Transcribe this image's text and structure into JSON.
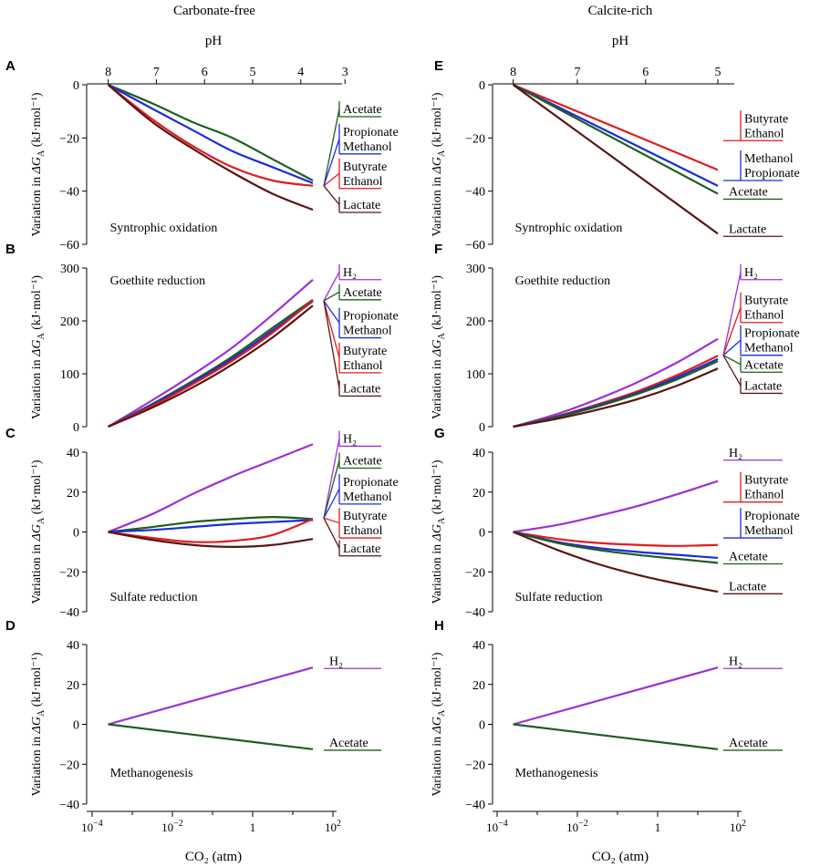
{
  "figure": {
    "columns": [
      {
        "title": "Carbonate-free",
        "top_axis_label": "pH",
        "bottom_axis_label": "CO₂ (atm)"
      },
      {
        "title": "Calcite-rich",
        "top_axis_label": "pH",
        "bottom_axis_label": "CO₂ (atm)"
      }
    ],
    "ylabel_prefix": "Variation in ",
    "ylabel_symbol": "ΔG",
    "ylabel_subscript": "A",
    "ylabel_units": " (kJ·mol⁻¹)",
    "log_ticks": [
      {
        "value": -4,
        "base": "10",
        "exp": "−4"
      },
      {
        "value": -2,
        "base": "10",
        "exp": "−2"
      },
      {
        "value": 0,
        "base": "1",
        "exp": ""
      },
      {
        "value": 2,
        "base": "10",
        "exp": "2"
      }
    ]
  },
  "colors": {
    "Acetate": "#1d5e1d",
    "Propionate": "#1b2be0",
    "Methanol": "#1b2be0",
    "Butyrate": "#e31b1b",
    "Ethanol": "#e31b1b",
    "Lactate": "#5a1414",
    "H2": "#9b30d9",
    "Cc_H2": "#9b30d9"
  },
  "chart_data": [
    {
      "panel": "A",
      "type": "line",
      "title": "Syntrophic oxidation",
      "column": "Carbonate-free",
      "xlabel": "CO₂ (atm)",
      "x_scale": "log10",
      "xlim": [
        -4,
        2
      ],
      "top_axis": {
        "label": "pH",
        "ticks": [
          {
            "label": "8",
            "pos": -3.6
          },
          {
            "label": "7",
            "pos": -2.4
          },
          {
            "label": "6",
            "pos": -1.2
          },
          {
            "label": "5",
            "pos": 0.0
          },
          {
            "label": "4",
            "pos": 1.2
          },
          {
            "label": "3",
            "pos": 2.3
          }
        ]
      },
      "ylim": [
        -60,
        0
      ],
      "yticks": [
        0,
        -20,
        -40,
        -60
      ],
      "series": [
        {
          "name": "Acetate",
          "color_key": "Acetate",
          "x": [
            -3.6,
            -2.5,
            -1.5,
            -0.5,
            0.5,
            1.5
          ],
          "y": [
            0,
            -7,
            -14,
            -20,
            -28,
            -36
          ]
        },
        {
          "name": "Propionate/Methanol",
          "color_key": "Methanol",
          "x": [
            -3.6,
            -2.5,
            -1.5,
            -0.5,
            0.5,
            1.5
          ],
          "y": [
            0,
            -9,
            -17,
            -25,
            -31,
            -37
          ]
        },
        {
          "name": "Butyrate/Ethanol",
          "color_key": "Ethanol",
          "x": [
            -3.6,
            -2.5,
            -1.5,
            -0.5,
            0.5,
            1.5
          ],
          "y": [
            0,
            -13,
            -23,
            -31,
            -36,
            -38
          ]
        },
        {
          "name": "Lactate",
          "color_key": "Lactate",
          "x": [
            -3.6,
            -2.5,
            -1.5,
            -0.5,
            0.5,
            1.5
          ],
          "y": [
            0,
            -14,
            -24,
            -33,
            -41,
            -47
          ]
        }
      ],
      "legend": [
        {
          "labels": [
            "Acetate"
          ],
          "color_key": "Acetate",
          "y": -12
        },
        {
          "labels": [
            "Propionate",
            "Methanol"
          ],
          "color_key": "Methanol",
          "y": -26
        },
        {
          "labels": [
            "Butyrate",
            "Ethanol"
          ],
          "color_key": "Ethanol",
          "y": -39
        },
        {
          "labels": [
            "Lactate"
          ],
          "color_key": "Lactate",
          "y": -48
        }
      ],
      "legend_hub_y": -38
    },
    {
      "panel": "B",
      "type": "line",
      "title": "Goethite reduction",
      "column": "Carbonate-free",
      "xlabel": "CO₂ (atm)",
      "x_scale": "log10",
      "xlim": [
        -4,
        2
      ],
      "ylim": [
        0,
        300
      ],
      "yticks": [
        0,
        100,
        200,
        300
      ],
      "series": [
        {
          "name": "H₂",
          "color_key": "H2",
          "x": [
            -3.6,
            -2.5,
            -1.5,
            -0.5,
            0.5,
            1.5
          ],
          "y": [
            0,
            50,
            98,
            150,
            212,
            278
          ]
        },
        {
          "name": "Acetate",
          "color_key": "Acetate",
          "x": [
            -3.6,
            -2.5,
            -1.5,
            -0.5,
            0.5,
            1.5
          ],
          "y": [
            0,
            43,
            86,
            133,
            187,
            240
          ]
        },
        {
          "name": "Propionate/Methanol",
          "color_key": "Methanol",
          "x": [
            -3.6,
            -2.5,
            -1.5,
            -0.5,
            0.5,
            1.5
          ],
          "y": [
            0,
            41,
            83,
            129,
            182,
            237
          ]
        },
        {
          "name": "Butyrate/Ethanol",
          "color_key": "Ethanol",
          "x": [
            -3.6,
            -2.5,
            -1.5,
            -0.5,
            0.5,
            1.5
          ],
          "y": [
            0,
            39,
            80,
            125,
            178,
            239
          ]
        },
        {
          "name": "Lactate",
          "color_key": "Lactate",
          "x": [
            -3.6,
            -2.5,
            -1.5,
            -0.5,
            0.5,
            1.5
          ],
          "y": [
            0,
            36,
            74,
            118,
            169,
            229
          ]
        }
      ],
      "legend": [
        {
          "labels": [
            "H₂"
          ],
          "color_key": "H2",
          "y": 278
        },
        {
          "labels": [
            "Acetate"
          ],
          "color_key": "Acetate",
          "y": 240
        },
        {
          "labels": [
            "Propionate",
            "Methanol"
          ],
          "color_key": "Methanol",
          "y": 168
        },
        {
          "labels": [
            "Butyrate",
            "Ethanol"
          ],
          "color_key": "Ethanol",
          "y": 102
        },
        {
          "labels": [
            "Lactate"
          ],
          "color_key": "Lactate",
          "y": 58
        }
      ],
      "legend_hub_y": 238
    },
    {
      "panel": "C",
      "type": "line",
      "title": "Sulfate reduction",
      "column": "Carbonate-free",
      "xlabel": "CO₂ (atm)",
      "x_scale": "log10",
      "xlim": [
        -4,
        2
      ],
      "ylim": [
        -40,
        40
      ],
      "yticks": [
        40,
        20,
        0,
        -20,
        -40
      ],
      "series": [
        {
          "name": "H₂",
          "color_key": "H2",
          "x": [
            -3.6,
            -2.5,
            -1.5,
            -0.5,
            0.5,
            1.5
          ],
          "y": [
            0,
            9,
            19,
            28,
            36,
            44
          ]
        },
        {
          "name": "Acetate",
          "color_key": "Acetate",
          "x": [
            -3.6,
            -2.5,
            -1.5,
            -0.5,
            0.5,
            1.5
          ],
          "y": [
            0,
            2.5,
            5,
            6.5,
            7.5,
            6.5
          ]
        },
        {
          "name": "Propionate/Methanol",
          "color_key": "Methanol",
          "x": [
            -3.6,
            -2.5,
            -1.5,
            -0.5,
            0.5,
            1.5
          ],
          "y": [
            0,
            1,
            2.5,
            4,
            5,
            6
          ]
        },
        {
          "name": "Butyrate/Ethanol",
          "color_key": "Ethanol",
          "x": [
            -3.6,
            -2.5,
            -1.5,
            -0.5,
            0.5,
            1.5
          ],
          "y": [
            0,
            -3,
            -5,
            -4.5,
            -1.5,
            6.5
          ]
        },
        {
          "name": "Lactate",
          "color_key": "Lactate",
          "x": [
            -3.6,
            -2.5,
            -1.5,
            -0.5,
            0.5,
            1.5
          ],
          "y": [
            0,
            -4,
            -6.5,
            -7.5,
            -6.5,
            -3.5
          ]
        }
      ],
      "legend": [
        {
          "labels": [
            "H₂"
          ],
          "color_key": "H2",
          "y": 43
        },
        {
          "labels": [
            "Acetate"
          ],
          "color_key": "Acetate",
          "y": 32
        },
        {
          "labels": [
            "Propionate",
            "Methanol"
          ],
          "color_key": "Methanol",
          "y": 14
        },
        {
          "labels": [
            "Butyrate",
            "Ethanol"
          ],
          "color_key": "Ethanol",
          "y": -3
        },
        {
          "labels": [
            "Lactate"
          ],
          "color_key": "Lactate",
          "y": -12
        }
      ],
      "legend_hub_y": 7
    },
    {
      "panel": "D",
      "type": "line",
      "title": "Methanogenesis",
      "column": "Carbonate-free",
      "xlabel": "CO₂ (atm)",
      "x_scale": "log10",
      "xlim": [
        -4,
        2
      ],
      "ylim": [
        -40,
        40
      ],
      "yticks": [
        40,
        20,
        0,
        -20,
        -40
      ],
      "series": [
        {
          "name": "H₂",
          "color_key": "H2",
          "x": [
            -3.6,
            1.5
          ],
          "y": [
            0,
            28.5
          ]
        },
        {
          "name": "Acetate",
          "color_key": "Acetate",
          "x": [
            -3.6,
            1.5
          ],
          "y": [
            0,
            -12.5
          ]
        }
      ],
      "legend": [
        {
          "labels": [
            "H₂"
          ],
          "color_key": "H2",
          "y": 28
        },
        {
          "labels": [
            "Acetate"
          ],
          "color_key": "Acetate",
          "y": -13
        }
      ],
      "legend_hub_y": null
    },
    {
      "panel": "E",
      "type": "line",
      "title": "Syntrophic oxidation",
      "column": "Calcite-rich",
      "xlabel": "CO₂ (atm)",
      "x_scale": "log10",
      "xlim": [
        -4,
        2
      ],
      "top_axis": {
        "label": "pH",
        "ticks": [
          {
            "label": "8",
            "pos": -3.6
          },
          {
            "label": "7",
            "pos": -2.0
          },
          {
            "label": "6",
            "pos": -0.3
          },
          {
            "label": "5",
            "pos": 1.5
          }
        ]
      },
      "ylim": [
        -60,
        0
      ],
      "yticks": [
        0,
        -20,
        -40,
        -60
      ],
      "series": [
        {
          "name": "Butyrate/Ethanol",
          "color_key": "Ethanol",
          "x": [
            -3.6,
            1.5
          ],
          "y": [
            0,
            -32
          ]
        },
        {
          "name": "Methanol/Propionate",
          "color_key": "Methanol",
          "x": [
            -3.6,
            1.5
          ],
          "y": [
            0,
            -38
          ]
        },
        {
          "name": "Acetate",
          "color_key": "Acetate",
          "x": [
            -3.6,
            1.5
          ],
          "y": [
            0,
            -41
          ]
        },
        {
          "name": "Lactate",
          "color_key": "Lactate",
          "x": [
            -3.6,
            1.5
          ],
          "y": [
            0,
            -56
          ]
        }
      ],
      "legend": [
        {
          "labels": [
            "Butyrate",
            "Ethanol"
          ],
          "color_key": "Ethanol",
          "y": -21
        },
        {
          "labels": [
            "Methanol",
            "Propionate"
          ],
          "color_key": "Methanol",
          "y": -36
        },
        {
          "labels": [
            "Acetate"
          ],
          "color_key": "Acetate",
          "y": -43
        },
        {
          "labels": [
            "Lactate"
          ],
          "color_key": "Lactate",
          "y": -57
        }
      ],
      "legend_hub_y": null
    },
    {
      "panel": "F",
      "type": "line",
      "title": "Goethite reduction",
      "column": "Calcite-rich",
      "xlabel": "CO₂ (atm)",
      "x_scale": "log10",
      "xlim": [
        -4,
        2
      ],
      "ylim": [
        0,
        300
      ],
      "yticks": [
        0,
        100,
        200,
        300
      ],
      "series": [
        {
          "name": "H₂",
          "color_key": "H2",
          "x": [
            -3.6,
            -2.5,
            -1.5,
            -0.5,
            0.5,
            1.5
          ],
          "y": [
            0,
            24,
            52,
            84,
            122,
            166
          ]
        },
        {
          "name": "Butyrate/Ethanol",
          "color_key": "Ethanol",
          "x": [
            -3.6,
            -2.5,
            -1.5,
            -0.5,
            0.5,
            1.5
          ],
          "y": [
            0,
            20,
            42,
            67,
            98,
            134
          ]
        },
        {
          "name": "Methanol/Propionate",
          "color_key": "Methanol",
          "x": [
            -3.6,
            -2.5,
            -1.5,
            -0.5,
            0.5,
            1.5
          ],
          "y": [
            0,
            19,
            40,
            64,
            94,
            128
          ]
        },
        {
          "name": "Acetate",
          "color_key": "Acetate",
          "x": [
            -3.6,
            -2.5,
            -1.5,
            -0.5,
            0.5,
            1.5
          ],
          "y": [
            0,
            18,
            38,
            62,
            90,
            124
          ]
        },
        {
          "name": "Lactate",
          "color_key": "Lactate",
          "x": [
            -3.6,
            -2.5,
            -1.5,
            -0.5,
            0.5,
            1.5
          ],
          "y": [
            0,
            15,
            32,
            52,
            78,
            110
          ]
        }
      ],
      "legend": [
        {
          "labels": [
            "H₂"
          ],
          "color_key": "H2",
          "y": 278
        },
        {
          "labels": [
            "Butyrate",
            "Ethanol"
          ],
          "color_key": "Ethanol",
          "y": 197
        },
        {
          "labels": [
            "Propionate",
            "Methanol"
          ],
          "color_key": "Methanol",
          "y": 135
        },
        {
          "labels": [
            "Acetate"
          ],
          "color_key": "Acetate",
          "y": 103
        },
        {
          "labels": [
            "Lactate"
          ],
          "color_key": "Lactate",
          "y": 63
        }
      ],
      "legend_hub_y": 135
    },
    {
      "panel": "G",
      "type": "line",
      "title": "Sulfate reduction",
      "column": "Calcite-rich",
      "xlabel": "CO₂ (atm)",
      "x_scale": "log10",
      "xlim": [
        -4,
        2
      ],
      "ylim": [
        -40,
        40
      ],
      "yticks": [
        40,
        20,
        0,
        -20,
        -40
      ],
      "series": [
        {
          "name": "H₂",
          "color_key": "H2",
          "x": [
            -3.6,
            -2.5,
            -1.5,
            -0.5,
            0.5,
            1.5
          ],
          "y": [
            0,
            3.5,
            8,
            13,
            19,
            25.5
          ]
        },
        {
          "name": "Butyrate/Ethanol",
          "color_key": "Ethanol",
          "x": [
            -3.6,
            -2.5,
            -1.5,
            -0.5,
            0.5,
            1.5
          ],
          "y": [
            0,
            -3.5,
            -5.5,
            -6.5,
            -7,
            -6.5
          ]
        },
        {
          "name": "Methanol/Propionate",
          "color_key": "Methanol",
          "x": [
            -3.6,
            -2.5,
            -1.5,
            -0.5,
            0.5,
            1.5
          ],
          "y": [
            0,
            -5,
            -8,
            -10,
            -11.5,
            -13
          ]
        },
        {
          "name": "Acetate",
          "color_key": "Acetate",
          "x": [
            -3.6,
            -2.5,
            -1.5,
            -0.5,
            0.5,
            1.5
          ],
          "y": [
            0,
            -5.5,
            -9,
            -11.5,
            -13.5,
            -15.5
          ]
        },
        {
          "name": "Lactate",
          "color_key": "Lactate",
          "x": [
            -3.6,
            -2.5,
            -1.5,
            -0.5,
            0.5,
            1.5
          ],
          "y": [
            0,
            -9,
            -16,
            -21.5,
            -26,
            -30
          ]
        }
      ],
      "legend": [
        {
          "labels": [
            "H₂"
          ],
          "color_key": "H2",
          "y": 36
        },
        {
          "labels": [
            "Butyrate",
            "Ethanol"
          ],
          "color_key": "Ethanol",
          "y": 15
        },
        {
          "labels": [
            "Propionate",
            "Methanol"
          ],
          "color_key": "Methanol",
          "y": -3
        },
        {
          "labels": [
            "Acetate"
          ],
          "color_key": "Acetate",
          "y": -16
        },
        {
          "labels": [
            "Lactate"
          ],
          "color_key": "Lactate",
          "y": -31
        }
      ],
      "legend_hub_y": null
    },
    {
      "panel": "H",
      "type": "line",
      "title": "Methanogenesis",
      "column": "Calcite-rich",
      "xlabel": "CO₂ (atm)",
      "x_scale": "log10",
      "xlim": [
        -4,
        2
      ],
      "ylim": [
        -40,
        40
      ],
      "yticks": [
        40,
        20,
        0,
        -20,
        -40
      ],
      "series": [
        {
          "name": "H₂",
          "color_key": "Cc_H2",
          "x": [
            -3.6,
            1.5
          ],
          "y": [
            0,
            28.5
          ]
        },
        {
          "name": "Acetate",
          "color_key": "Acetate",
          "x": [
            -3.6,
            1.5
          ],
          "y": [
            0,
            -12.5
          ]
        }
      ],
      "legend": [
        {
          "labels": [
            "H₂"
          ],
          "color_key": "Cc_H2",
          "y": 28
        },
        {
          "labels": [
            "Acetate"
          ],
          "color_key": "Acetate",
          "y": -13
        }
      ],
      "legend_hub_y": null
    }
  ]
}
